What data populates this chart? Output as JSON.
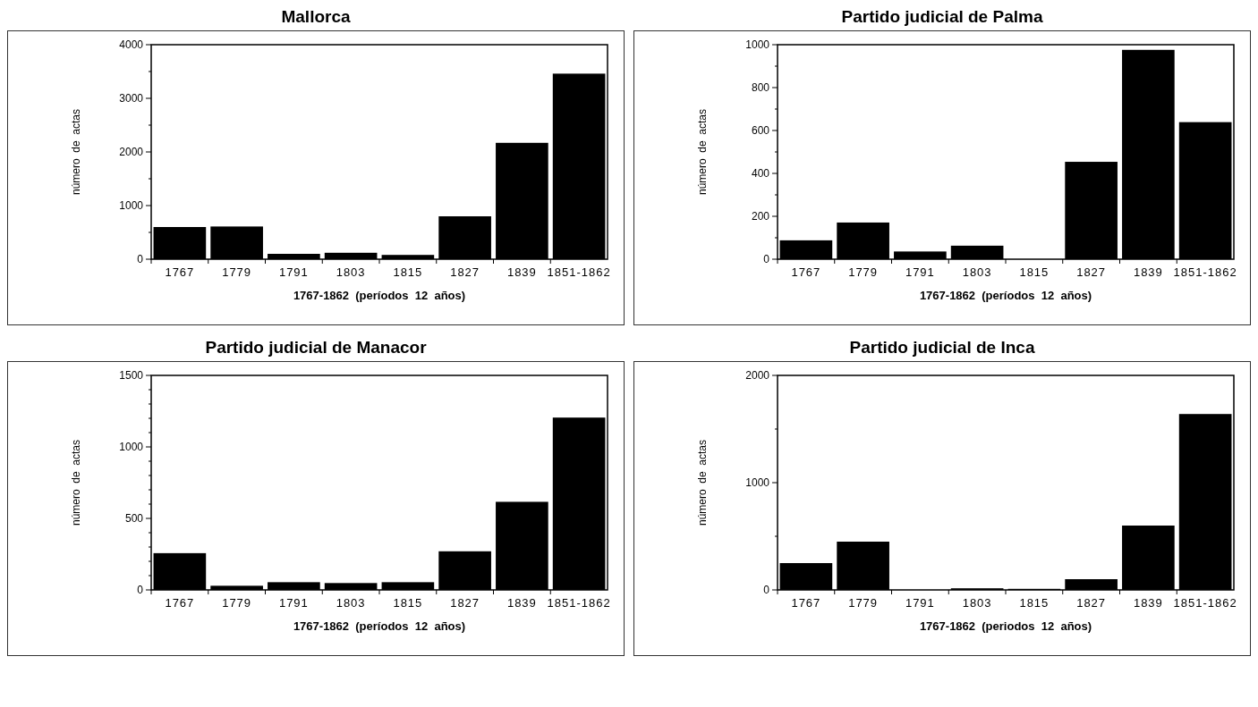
{
  "chart_data": [
    {
      "type": "bar",
      "title": "Mallorca",
      "xlabel": "1767-1862  (períodos  12  años)",
      "ylabel": "número  de  actas",
      "categories": [
        "1767",
        "1779",
        "1791",
        "1803",
        "1815",
        "1827",
        "1839",
        "1851-1862"
      ],
      "values": [
        600,
        610,
        100,
        120,
        80,
        800,
        2170,
        3460
      ],
      "color": "#000000",
      "ylim": [
        0,
        4000
      ],
      "yticks": [
        0,
        {
          "value": 500,
          "label": null
        },
        1000,
        {
          "value": 1500,
          "label": null
        },
        2000,
        {
          "value": 2500,
          "label": null
        },
        3000,
        {
          "value": 3500,
          "label": null
        },
        4000
      ]
    },
    {
      "type": "bar",
      "title": "Partido judicial de Palma",
      "xlabel": "1767-1862  (períodos  12  años)",
      "ylabel": "número  de  actas",
      "categories": [
        "1767",
        "1779",
        "1791",
        "1803",
        "1815",
        "1827",
        "1839",
        "1851-1862"
      ],
      "values": [
        88,
        171,
        36,
        63,
        0,
        454,
        976,
        639
      ],
      "color": "#000000",
      "ylim": [
        0,
        1000
      ],
      "yticks": [
        0,
        {
          "value": 100,
          "label": null
        },
        200,
        {
          "value": 300,
          "label": null
        },
        400,
        {
          "value": 500,
          "label": null
        },
        600,
        {
          "value": 700,
          "label": null
        },
        800,
        {
          "value": 900,
          "label": null
        },
        1000
      ]
    },
    {
      "type": "bar",
      "title": "Partido judicial de Manacor",
      "xlabel": "1767-1862  (períodos  12  años)",
      "ylabel": "número  de  actas",
      "categories": [
        "1767",
        "1779",
        "1791",
        "1803",
        "1815",
        "1827",
        "1839",
        "1851-1862"
      ],
      "values": [
        257,
        29,
        54,
        48,
        54,
        270,
        616,
        1205
      ],
      "color": "#000000",
      "ylim": [
        0,
        1500
      ],
      "yticks": [
        0,
        {
          "value": 100,
          "label": null
        },
        {
          "value": 200,
          "label": null
        },
        {
          "value": 300,
          "label": null
        },
        {
          "value": 400,
          "label": null
        },
        500,
        {
          "value": 600,
          "label": null
        },
        {
          "value": 700,
          "label": null
        },
        {
          "value": 800,
          "label": null
        },
        {
          "value": 900,
          "label": null
        },
        1000,
        {
          "value": 1100,
          "label": null
        },
        {
          "value": 1200,
          "label": null
        },
        {
          "value": 1300,
          "label": null
        },
        {
          "value": 1400,
          "label": null
        },
        1500
      ]
    },
    {
      "type": "bar",
      "title": "Partido judicial de Inca",
      "xlabel": "1767-1862  (periodos  12  años)",
      "ylabel": "número  de  actas",
      "categories": [
        "1767",
        "1779",
        "1791",
        "1803",
        "1815",
        "1827",
        "1839",
        "1851-1862"
      ],
      "values": [
        250,
        450,
        0,
        15,
        10,
        100,
        600,
        1640
      ],
      "color": "#000000",
      "ylim": [
        0,
        2000
      ],
      "yticks": [
        0,
        {
          "value": 500,
          "label": null
        },
        1000,
        {
          "value": 1500,
          "label": null
        },
        2000
      ]
    }
  ]
}
